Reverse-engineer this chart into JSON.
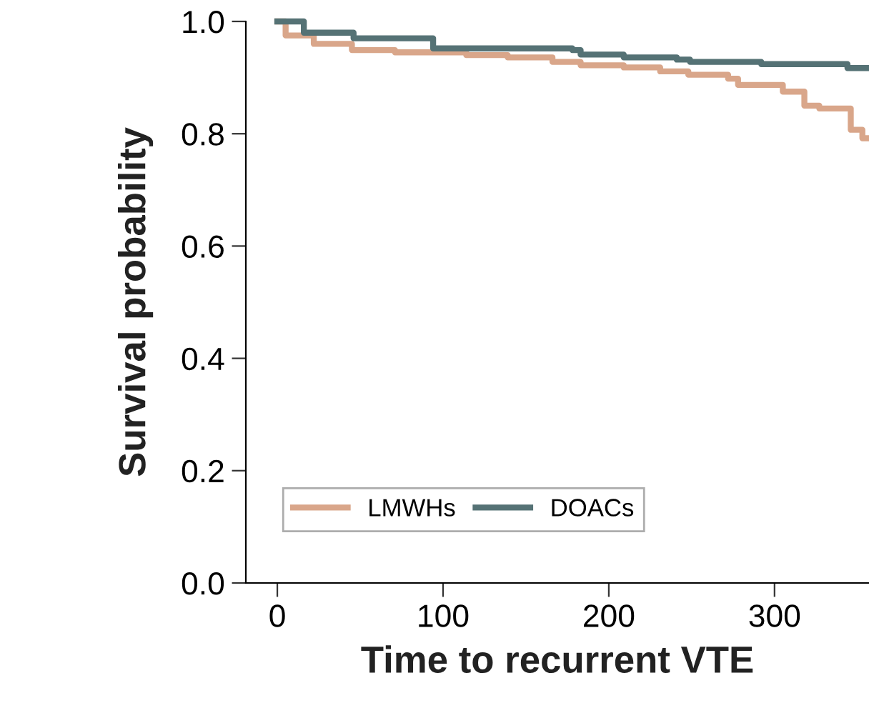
{
  "chart_data": {
    "type": "step",
    "xlabel": "Time to recurrent VTE",
    "ylabel": "Survival probability",
    "xlim": [
      -19,
      357
    ],
    "ylim": [
      0,
      1.0
    ],
    "xticks": [
      0,
      100,
      200,
      300
    ],
    "yticks": [
      {
        "value": 0,
        "label": "0.0"
      },
      {
        "value": 0.2,
        "label": "0.2"
      },
      {
        "value": 0.4,
        "label": "0.4"
      },
      {
        "value": 0.6,
        "label": "0.6"
      },
      {
        "value": 0.8,
        "label": "0.8"
      },
      {
        "value": 1.0,
        "label": "1.0"
      }
    ],
    "grid": false,
    "legend": "bottom left",
    "series": [
      {
        "name": "LMWHs",
        "color": "#d9a68a",
        "x": [
          0,
          5,
          22,
          45,
          71,
          114,
          139,
          166,
          183,
          209,
          231,
          248,
          272,
          278,
          305,
          318,
          327,
          346,
          353,
          357
        ],
        "values": [
          1.0,
          0.975,
          0.96,
          0.949,
          0.945,
          0.94,
          0.936,
          0.928,
          0.922,
          0.918,
          0.911,
          0.905,
          0.898,
          0.887,
          0.875,
          0.85,
          0.845,
          0.807,
          0.792,
          0.792
        ]
      },
      {
        "name": "DOACs",
        "color": "#557275",
        "x": [
          0,
          16,
          46,
          94,
          178,
          183,
          209,
          241,
          249,
          292,
          344,
          357
        ],
        "values": [
          1.0,
          0.98,
          0.97,
          0.952,
          0.949,
          0.941,
          0.936,
          0.932,
          0.928,
          0.924,
          0.917,
          0.917
        ]
      }
    ]
  }
}
